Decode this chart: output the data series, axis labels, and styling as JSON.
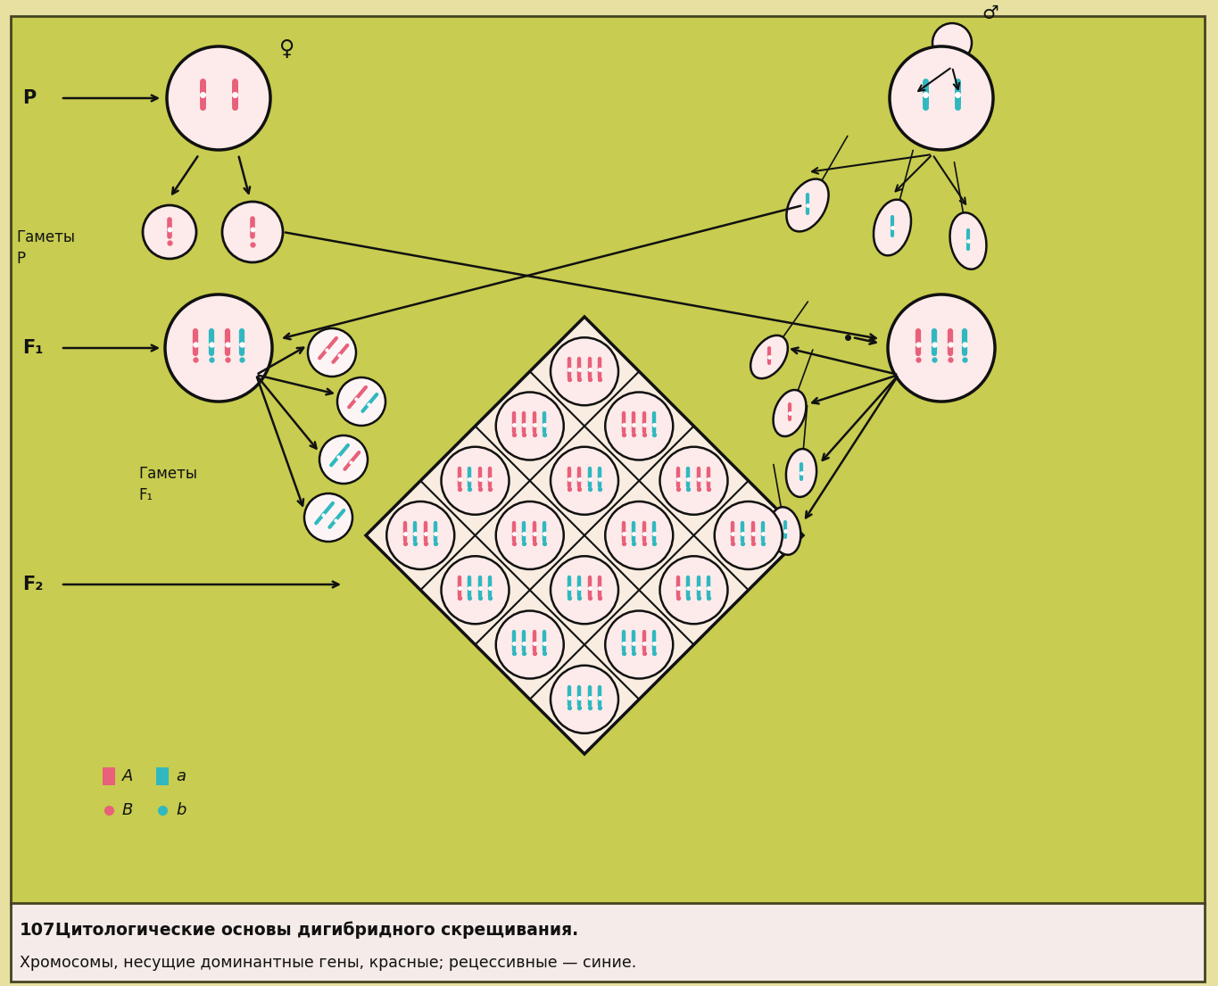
{
  "bg_color": "#c8cc50",
  "bg_outer": "#e8e0a0",
  "caption_bg": "#f5ebe8",
  "title_num": "107.",
  "title_text": "  Цитологические основы дигибридного скрещивания.",
  "subtitle_text": "Хромосомы, несущие доминантные гены, красные; рецессивные — синие.",
  "label_P": "P",
  "label_gamety_P": "Гаметы\nP",
  "label_F1": "F₁",
  "label_gamety_F1": "Гаметы\nF₁",
  "label_F2": "F₂",
  "pink": "#e8607a",
  "cyan": "#30b8c0",
  "dark": "#111111",
  "cell_bg": "#fdeaea",
  "grid_bg": "#f8ede0",
  "female_symbol": "♀",
  "male_symbol": "♂"
}
